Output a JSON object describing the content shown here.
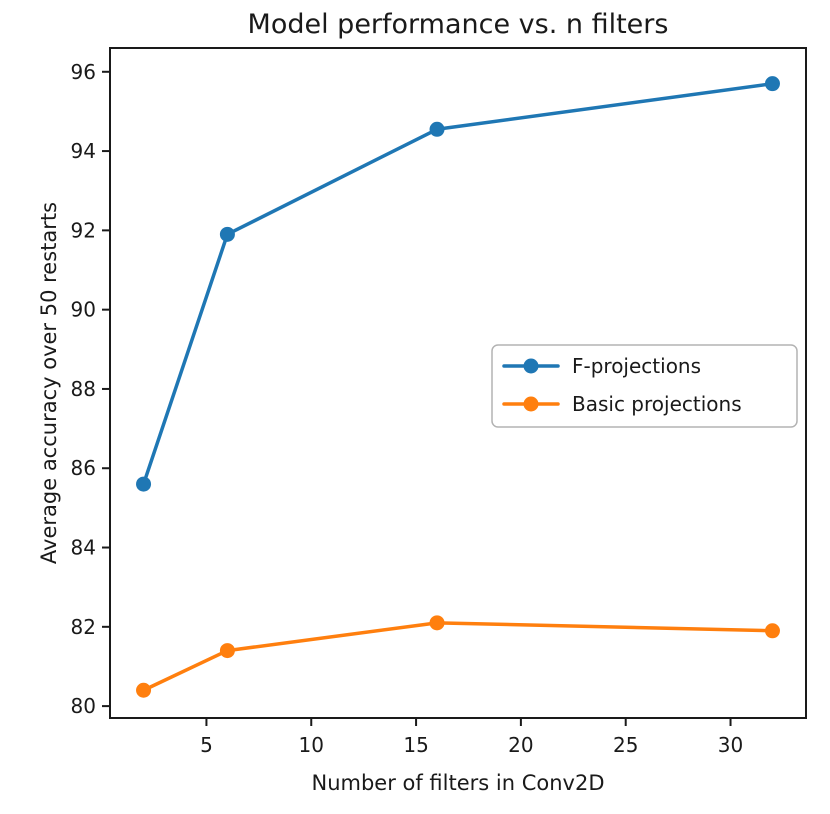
{
  "chart_data": {
    "type": "line",
    "title": "Model performance vs. n filters",
    "xlabel": "Number of filters in Conv2D",
    "ylabel": "Average accuracy over 50 restarts",
    "x": [
      2,
      6,
      16,
      32
    ],
    "series": [
      {
        "name": "F-projections",
        "color": "#1f77b4",
        "values": [
          85.6,
          91.9,
          94.55,
          95.7
        ]
      },
      {
        "name": "Basic projections",
        "color": "#ff7f0e",
        "values": [
          80.4,
          81.4,
          82.1,
          81.9
        ]
      }
    ],
    "xticks": [
      5,
      10,
      15,
      20,
      25,
      30
    ],
    "yticks": [
      80,
      82,
      84,
      86,
      88,
      90,
      92,
      94,
      96
    ],
    "xlim": [
      0.4,
      33.6
    ],
    "ylim": [
      79.7,
      96.6
    ],
    "grid": false,
    "marker": "circle",
    "legend": {
      "position": "center-right",
      "entries": [
        "F-projections",
        "Basic projections"
      ]
    },
    "colors": {
      "text": "#1a1a1a",
      "spine": "#1a1a1a",
      "legend_border": "#b3b3b3",
      "background": "#ffffff"
    }
  }
}
